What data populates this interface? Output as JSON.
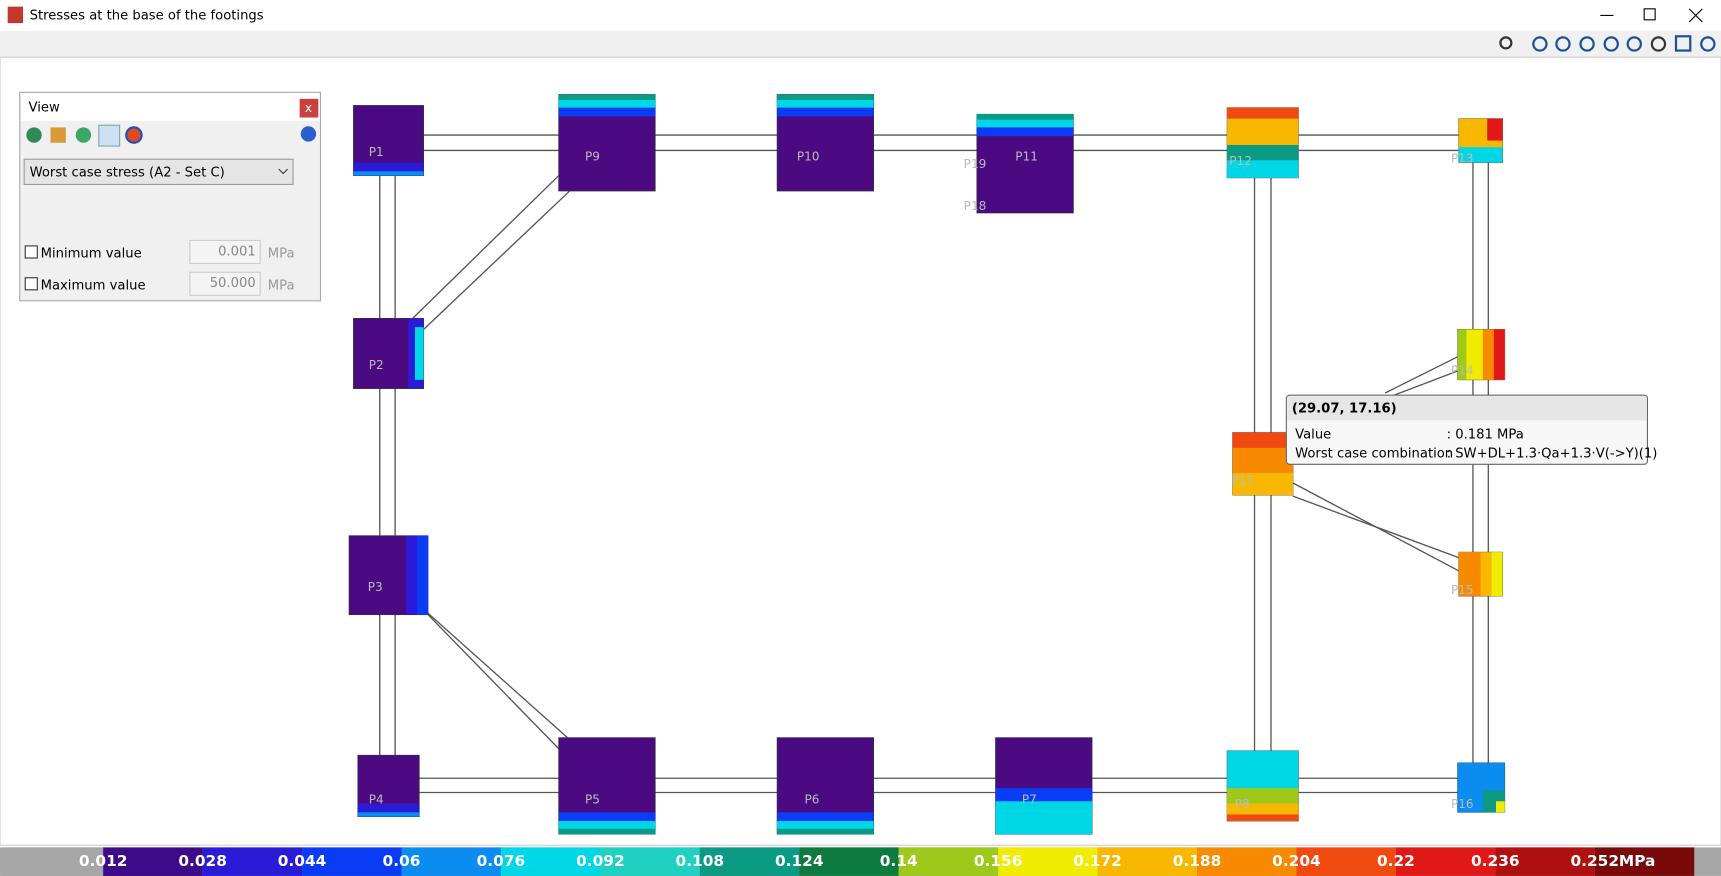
{
  "window": {
    "title": "Stresses at the base of the footings"
  },
  "view_panel": {
    "title": "View",
    "close": "x",
    "mode": "Worst case stress (A2 - Set C)",
    "minimum": {
      "label": "Minimum value",
      "value": "0.001",
      "unit": "MPa"
    },
    "maximum": {
      "label": "Maximum value",
      "value": "50.000",
      "unit": "MPa"
    }
  },
  "footings": [
    "P1",
    "P9",
    "P10",
    "P11",
    "P19",
    "P18",
    "P12",
    "P13",
    "P2",
    "P14",
    "P17",
    "P3",
    "P15",
    "P4",
    "P5",
    "P6",
    "P7",
    "P8",
    "P16"
  ],
  "tooltip": {
    "coords": "(29.07, 17.16)",
    "rows": [
      [
        "Value",
        ": 0.181 MPa"
      ],
      [
        "Worst case combination",
        ": SW+DL+1.3·Qa+1.3·V(->Y)(1)"
      ]
    ]
  },
  "color_scale": {
    "labels": [
      "0.012",
      "0.028",
      "0.044",
      "0.06",
      "0.076",
      "0.092",
      "0.108",
      "0.124",
      "0.14",
      "0.156",
      "0.172",
      "0.188",
      "0.204",
      "0.22",
      "0.236",
      "0.252"
    ],
    "unit": "MPa",
    "colors": [
      "#a6a6a6",
      "#3d0a8a",
      "#2a1bd6",
      "#0a3cf5",
      "#0a8cf0",
      "#00d7e6",
      "#20d0c0",
      "#0b9a84",
      "#0d7a40",
      "#9ec81a",
      "#f0ec00",
      "#f8b800",
      "#f88a00",
      "#f04a10",
      "#e01818",
      "#b01010",
      "#7a0a0a"
    ]
  }
}
